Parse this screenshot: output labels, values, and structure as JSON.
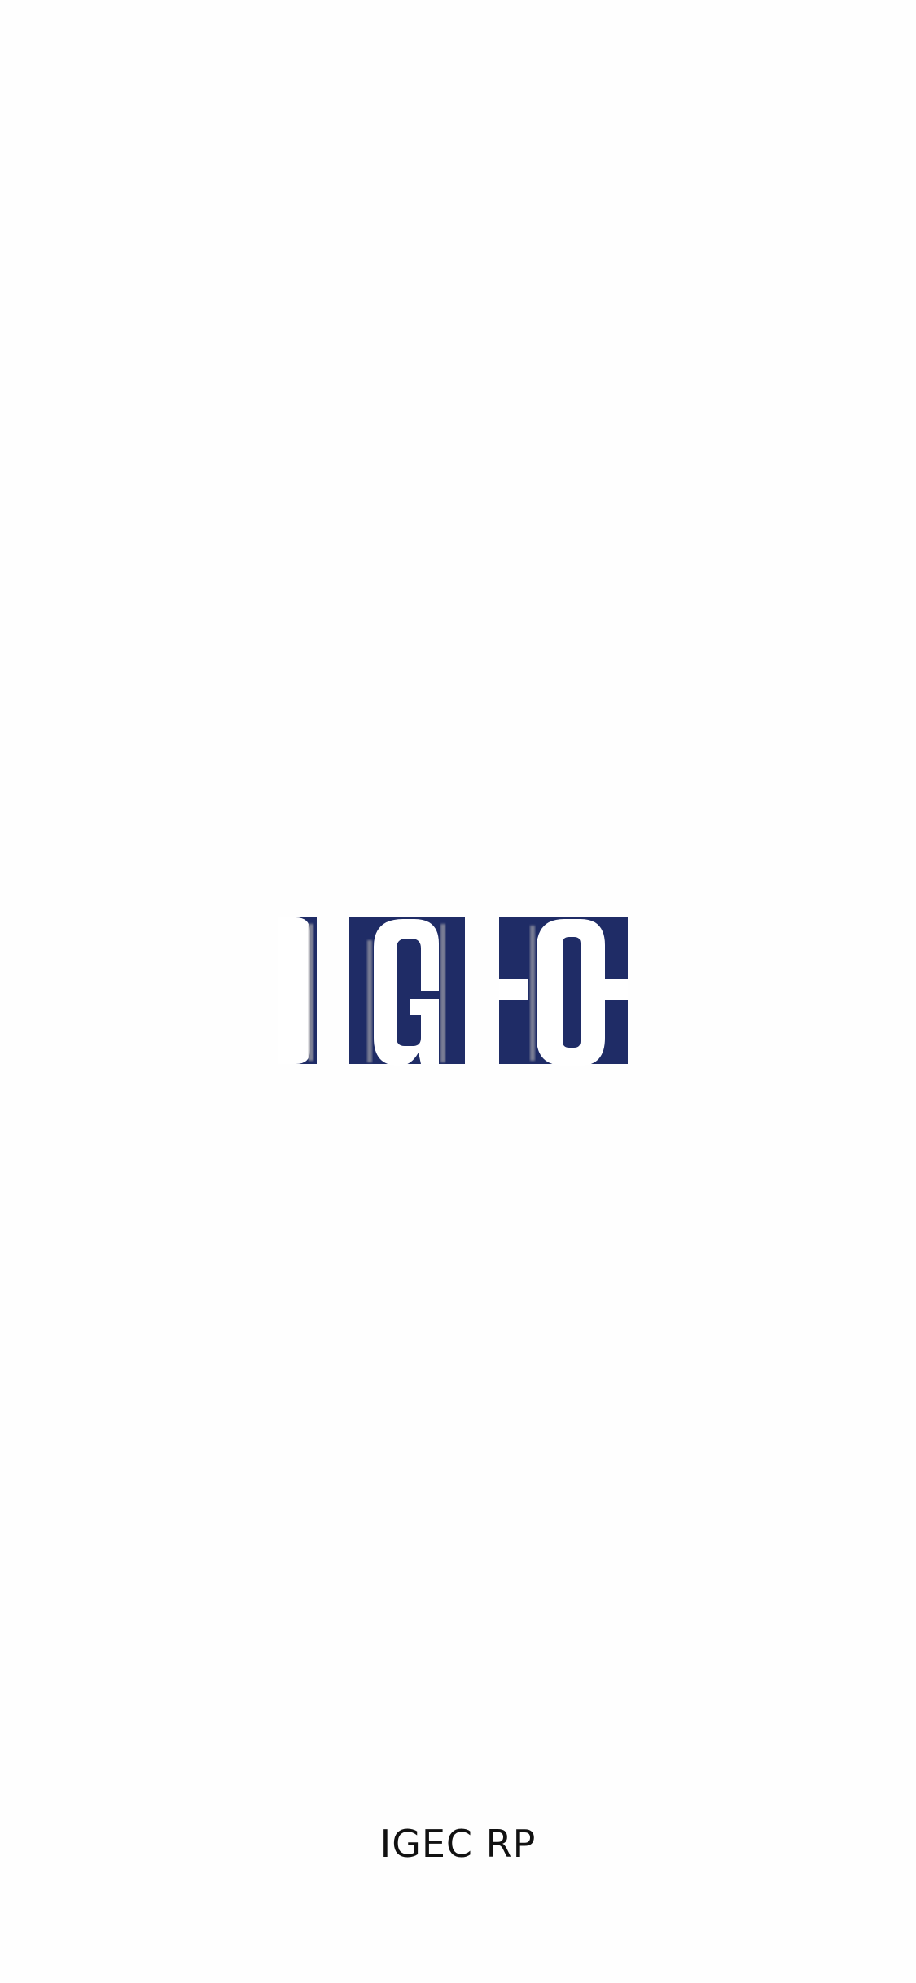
{
  "splash": {
    "logo_name": "igec-logo",
    "logo_text": "IGEC",
    "app_name": "IGEC RP"
  },
  "colors": {
    "background": "#fefefe",
    "logo_blue": "#1f2c66",
    "logo_letter": "#ffffff",
    "text": "#111111"
  }
}
